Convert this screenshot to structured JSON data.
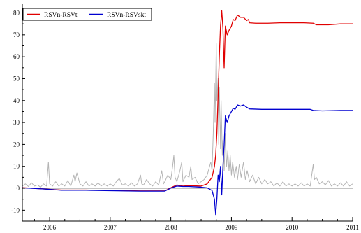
{
  "chart_data": {
    "type": "line",
    "title": "",
    "xlabel": "",
    "ylabel": "",
    "xlim": [
      2005.55,
      2011.0
    ],
    "ylim": [
      -15,
      84
    ],
    "grid": false,
    "legend": {
      "placement": "top-left"
    },
    "x_ticks": [
      2006,
      2007,
      2008,
      2009,
      2010,
      2011
    ],
    "x_tick_labels": [
      "2006",
      "2007",
      "2008",
      "2009",
      "2010",
      "2011"
    ],
    "y_ticks": [
      -10,
      0,
      10,
      20,
      30,
      40,
      50,
      60,
      70,
      80
    ],
    "y_tick_labels": [
      "-10",
      "0",
      "10",
      "20",
      "30",
      "40",
      "50",
      "60",
      "70",
      "80"
    ],
    "colors": {
      "red": "#e00000",
      "blue": "#0000d0",
      "gray": "#b4b4b4",
      "axis": "#000000",
      "zero_line": "#888888"
    },
    "series": [
      {
        "name": "RSVn-RSVt",
        "color": "#e00000",
        "points": [
          [
            2005.55,
            0.3
          ],
          [
            2005.9,
            -0.3
          ],
          [
            2006.2,
            -0.8
          ],
          [
            2006.6,
            -0.8
          ],
          [
            2007.0,
            -1.0
          ],
          [
            2007.5,
            -1.2
          ],
          [
            2007.9,
            -1.2
          ],
          [
            2008.02,
            0.5
          ],
          [
            2008.1,
            1.5
          ],
          [
            2008.2,
            1.0
          ],
          [
            2008.3,
            1.2
          ],
          [
            2008.5,
            1.0
          ],
          [
            2008.6,
            2.0
          ],
          [
            2008.68,
            5.0
          ],
          [
            2008.72,
            10.0
          ],
          [
            2008.74,
            15.0
          ],
          [
            2008.76,
            25.0
          ],
          [
            2008.78,
            42.0
          ],
          [
            2008.8,
            60.0
          ],
          [
            2008.82,
            74.0
          ],
          [
            2008.84,
            81.0
          ],
          [
            2008.86,
            73.0
          ],
          [
            2008.88,
            55.0
          ],
          [
            2008.9,
            74.0
          ],
          [
            2008.93,
            70.0
          ],
          [
            2008.96,
            72.0
          ],
          [
            2009.0,
            74.0
          ],
          [
            2009.03,
            77.0
          ],
          [
            2009.06,
            76.5
          ],
          [
            2009.1,
            79.0
          ],
          [
            2009.15,
            78.0
          ],
          [
            2009.2,
            78.0
          ],
          [
            2009.25,
            76.5
          ],
          [
            2009.28,
            77.0
          ],
          [
            2009.3,
            75.5
          ],
          [
            2009.4,
            75.3
          ],
          [
            2009.6,
            75.3
          ],
          [
            2009.8,
            75.5
          ],
          [
            2010.0,
            75.5
          ],
          [
            2010.2,
            75.5
          ],
          [
            2010.35,
            75.3
          ],
          [
            2010.4,
            74.6
          ],
          [
            2010.6,
            74.6
          ],
          [
            2010.8,
            75.0
          ],
          [
            2011.0,
            75.0
          ]
        ]
      },
      {
        "name": "RSVn-RSVskt",
        "color": "#0000d0",
        "points": [
          [
            2005.55,
            0.2
          ],
          [
            2005.9,
            -0.3
          ],
          [
            2006.2,
            -0.9
          ],
          [
            2006.6,
            -0.9
          ],
          [
            2007.0,
            -1.1
          ],
          [
            2007.5,
            -1.3
          ],
          [
            2007.9,
            -1.3
          ],
          [
            2008.02,
            0.3
          ],
          [
            2008.1,
            1.0
          ],
          [
            2008.2,
            0.8
          ],
          [
            2008.3,
            0.8
          ],
          [
            2008.5,
            0.5
          ],
          [
            2008.6,
            0.2
          ],
          [
            2008.68,
            -1.0
          ],
          [
            2008.72,
            -5.0
          ],
          [
            2008.74,
            -12.0
          ],
          [
            2008.76,
            -5.0
          ],
          [
            2008.78,
            6.0
          ],
          [
            2008.8,
            3.0
          ],
          [
            2008.82,
            10.0
          ],
          [
            2008.84,
            -3.0
          ],
          [
            2008.86,
            10.0
          ],
          [
            2008.88,
            20.0
          ],
          [
            2008.9,
            33.0
          ],
          [
            2008.93,
            30.0
          ],
          [
            2008.96,
            33.0
          ],
          [
            2009.0,
            35.0
          ],
          [
            2009.03,
            36.5
          ],
          [
            2009.06,
            36.0
          ],
          [
            2009.1,
            38.0
          ],
          [
            2009.15,
            37.5
          ],
          [
            2009.2,
            38.0
          ],
          [
            2009.25,
            37.0
          ],
          [
            2009.3,
            36.2
          ],
          [
            2009.5,
            36.0
          ],
          [
            2009.8,
            36.0
          ],
          [
            2010.0,
            36.0
          ],
          [
            2010.2,
            36.0
          ],
          [
            2010.3,
            36.0
          ],
          [
            2010.35,
            35.5
          ],
          [
            2010.5,
            35.3
          ],
          [
            2010.8,
            35.5
          ],
          [
            2011.0,
            35.5
          ]
        ]
      },
      {
        "color": "#b4b4b4",
        "points": [
          [
            2005.55,
            1.0
          ],
          [
            2005.6,
            2.0
          ],
          [
            2005.65,
            0.8
          ],
          [
            2005.7,
            2.5
          ],
          [
            2005.75,
            1.0
          ],
          [
            2005.8,
            1.5
          ],
          [
            2005.85,
            0.5
          ],
          [
            2005.9,
            2.0
          ],
          [
            2005.95,
            1.0
          ],
          [
            2005.98,
            12.0
          ],
          [
            2006.0,
            2.0
          ],
          [
            2006.05,
            1.0
          ],
          [
            2006.1,
            3.0
          ],
          [
            2006.15,
            1.0
          ],
          [
            2006.2,
            2.0
          ],
          [
            2006.25,
            1.0
          ],
          [
            2006.3,
            3.5
          ],
          [
            2006.35,
            1.0
          ],
          [
            2006.4,
            6.0
          ],
          [
            2006.42,
            3.0
          ],
          [
            2006.45,
            7.0
          ],
          [
            2006.5,
            2.0
          ],
          [
            2006.55,
            1.0
          ],
          [
            2006.6,
            3.0
          ],
          [
            2006.65,
            1.0
          ],
          [
            2006.7,
            2.0
          ],
          [
            2006.75,
            1.0
          ],
          [
            2006.8,
            2.5
          ],
          [
            2006.85,
            1.0
          ],
          [
            2006.9,
            2.0
          ],
          [
            2006.95,
            1.0
          ],
          [
            2007.0,
            2.0
          ],
          [
            2007.05,
            1.0
          ],
          [
            2007.1,
            3.0
          ],
          [
            2007.15,
            4.5
          ],
          [
            2007.2,
            1.5
          ],
          [
            2007.25,
            2.0
          ],
          [
            2007.3,
            1.0
          ],
          [
            2007.35,
            2.5
          ],
          [
            2007.4,
            1.0
          ],
          [
            2007.45,
            2.0
          ],
          [
            2007.5,
            6.0
          ],
          [
            2007.52,
            2.0
          ],
          [
            2007.55,
            1.5
          ],
          [
            2007.6,
            4.0
          ],
          [
            2007.65,
            2.0
          ],
          [
            2007.7,
            1.0
          ],
          [
            2007.75,
            3.0
          ],
          [
            2007.8,
            1.5
          ],
          [
            2007.85,
            8.0
          ],
          [
            2007.88,
            2.0
          ],
          [
            2007.9,
            3.0
          ],
          [
            2007.95,
            6.0
          ],
          [
            2008.0,
            4.0
          ],
          [
            2008.03,
            10.0
          ],
          [
            2008.05,
            15.0
          ],
          [
            2008.07,
            5.0
          ],
          [
            2008.1,
            3.0
          ],
          [
            2008.15,
            8.0
          ],
          [
            2008.18,
            12.0
          ],
          [
            2008.2,
            3.0
          ],
          [
            2008.25,
            6.0
          ],
          [
            2008.3,
            5.0
          ],
          [
            2008.33,
            10.0
          ],
          [
            2008.35,
            4.0
          ],
          [
            2008.4,
            5.0
          ],
          [
            2008.45,
            2.0
          ],
          [
            2008.5,
            3.0
          ],
          [
            2008.55,
            4.0
          ],
          [
            2008.6,
            6.0
          ],
          [
            2008.63,
            9.0
          ],
          [
            2008.66,
            12.0
          ],
          [
            2008.68,
            8.0
          ],
          [
            2008.7,
            25.0
          ],
          [
            2008.72,
            48.0
          ],
          [
            2008.73,
            30.0
          ],
          [
            2008.75,
            66.0
          ],
          [
            2008.76,
            40.0
          ],
          [
            2008.78,
            50.0
          ],
          [
            2008.79,
            20.0
          ],
          [
            2008.8,
            46.0
          ],
          [
            2008.82,
            18.0
          ],
          [
            2008.83,
            40.0
          ],
          [
            2008.85,
            15.0
          ],
          [
            2008.86,
            22.0
          ],
          [
            2008.88,
            8.0
          ],
          [
            2008.9,
            25.0
          ],
          [
            2008.92,
            10.0
          ],
          [
            2008.94,
            17.0
          ],
          [
            2008.96,
            8.0
          ],
          [
            2008.98,
            15.0
          ],
          [
            2009.0,
            6.0
          ],
          [
            2009.02,
            12.0
          ],
          [
            2009.05,
            5.0
          ],
          [
            2009.08,
            10.0
          ],
          [
            2009.1,
            4.0
          ],
          [
            2009.13,
            11.0
          ],
          [
            2009.16,
            5.0
          ],
          [
            2009.2,
            12.0
          ],
          [
            2009.23,
            4.0
          ],
          [
            2009.26,
            8.0
          ],
          [
            2009.3,
            3.0
          ],
          [
            2009.35,
            6.0
          ],
          [
            2009.4,
            2.0
          ],
          [
            2009.45,
            5.0
          ],
          [
            2009.5,
            2.0
          ],
          [
            2009.55,
            4.0
          ],
          [
            2009.6,
            2.0
          ],
          [
            2009.65,
            3.0
          ],
          [
            2009.7,
            1.0
          ],
          [
            2009.75,
            2.5
          ],
          [
            2009.8,
            1.0
          ],
          [
            2009.85,
            3.0
          ],
          [
            2009.9,
            1.0
          ],
          [
            2009.95,
            2.0
          ],
          [
            2010.0,
            1.0
          ],
          [
            2010.05,
            2.0
          ],
          [
            2010.1,
            1.0
          ],
          [
            2010.15,
            2.5
          ],
          [
            2010.2,
            1.0
          ],
          [
            2010.25,
            2.0
          ],
          [
            2010.3,
            1.0
          ],
          [
            2010.35,
            11.0
          ],
          [
            2010.37,
            4.0
          ],
          [
            2010.4,
            5.0
          ],
          [
            2010.45,
            2.0
          ],
          [
            2010.5,
            3.0
          ],
          [
            2010.55,
            1.5
          ],
          [
            2010.6,
            3.5
          ],
          [
            2010.65,
            1.0
          ],
          [
            2010.7,
            2.0
          ],
          [
            2010.75,
            1.0
          ],
          [
            2010.8,
            2.5
          ],
          [
            2010.85,
            1.0
          ],
          [
            2010.9,
            3.0
          ],
          [
            2010.95,
            1.0
          ],
          [
            2011.0,
            2.0
          ]
        ]
      }
    ]
  }
}
